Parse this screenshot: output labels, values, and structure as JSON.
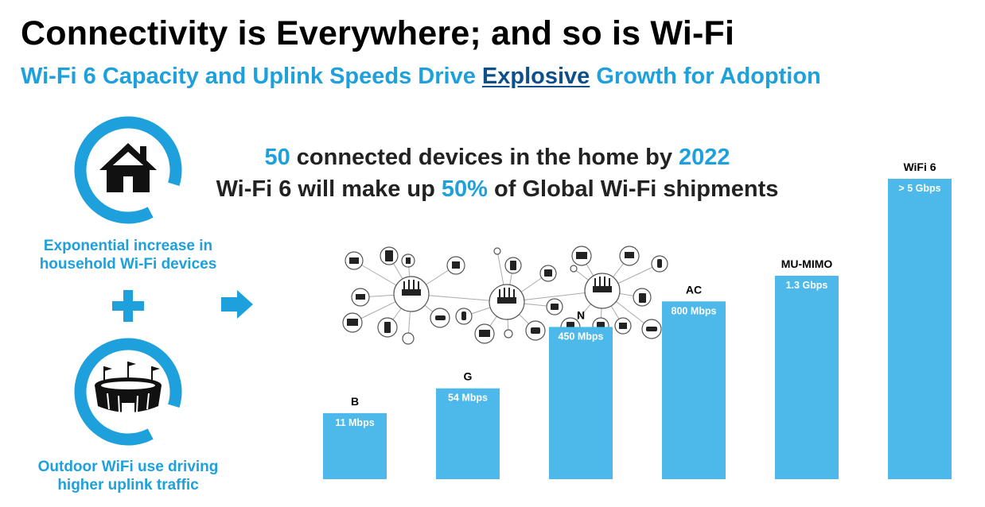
{
  "header": {
    "title": "Connectivity is Everywhere; and so is Wi-Fi",
    "subtitle_before": "Wi-Fi 6 Capacity and Uplink Speeds Drive ",
    "subtitle_emphasis": "Explosive",
    "subtitle_after": " Growth for Adoption"
  },
  "stats": {
    "line1_num": "50",
    "line1_text": " connected devices in the home by ",
    "line1_year": "2022",
    "line2_text": "Wi-Fi 6 will make up ",
    "line2_pct": "50%",
    "line2_after": " of  Global Wi-Fi shipments"
  },
  "left_panel": {
    "home_icon": "house-icon",
    "home_caption_1": "Exponential increase in",
    "home_caption_2": "household Wi-Fi devices",
    "plus_icon": "plus-icon",
    "stadium_icon": "stadium-icon",
    "stadium_caption_1": "Outdoor WiFi use driving",
    "stadium_caption_2": "higher uplink traffic"
  },
  "arrow_icon": "right-arrow-icon",
  "network_icon": "connected-devices-network-icon",
  "colors": {
    "accent": "#1ea0dc",
    "bar": "#4db8ea",
    "emphasis": "#0d4f8b"
  },
  "chart_data": {
    "type": "bar",
    "categories": [
      "B",
      "G",
      "N",
      "AC",
      "MU-MIMO",
      "WiFi 6"
    ],
    "values": [
      11,
      54,
      450,
      800,
      1300,
      5000
    ],
    "value_labels": [
      "11 Mbps",
      "54 Mbps",
      "450 Mbps",
      "800 Mbps",
      "1.3 Gbps",
      "> 5 Gbps"
    ],
    "unit": "Mbps",
    "note": "bar heights are not drawn to a linear scale",
    "title": "",
    "xlabel": "",
    "ylabel": "",
    "grid": false,
    "legend": "none"
  }
}
